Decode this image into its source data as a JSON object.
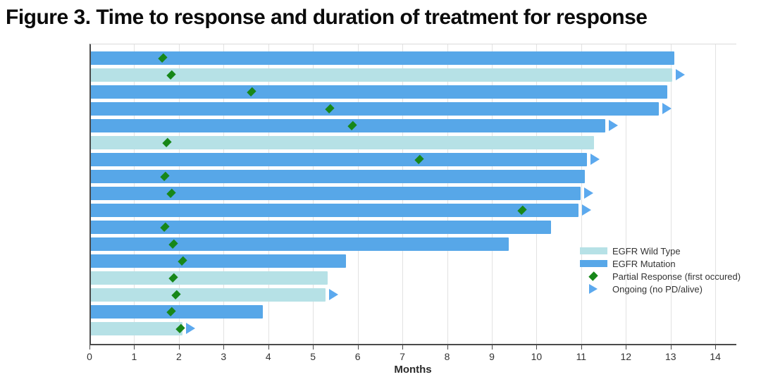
{
  "title": "Figure 3. Time to response and duration of treatment for response",
  "colors": {
    "wild_type": "#b6e1e6",
    "mutation": "#57a7e8",
    "response": "#178719",
    "ongoing": "#5ca9ee",
    "grid": "#e2e2e2",
    "axis": "#4a4a4a"
  },
  "icons": {
    "partial_response": "diamond-icon",
    "ongoing": "triangle-right-icon"
  },
  "chart_data": {
    "type": "bar",
    "subtype": "swimmer-plot",
    "orientation": "horizontal",
    "title": "Figure 3. Time to response and duration of treatment for response",
    "xlabel": "Months",
    "x_ticks": [
      0,
      1,
      2,
      3,
      4,
      5,
      6,
      7,
      8,
      9,
      10,
      11,
      12,
      13,
      14
    ],
    "xlim": [
      0,
      14.47
    ],
    "grid": "vertical",
    "legend_position": "inside-right",
    "legend_items": [
      {
        "label": "EGFR Wild Type",
        "swatch": "bar",
        "color_key": "wild_type"
      },
      {
        "label": "EGFR Mutation",
        "swatch": "bar",
        "color_key": "mutation"
      },
      {
        "label": "Partial Response (first occured)",
        "swatch": "diamond",
        "color_key": "response"
      },
      {
        "label": "Ongoing (no PD/alive)",
        "swatch": "triangle",
        "color_key": "ongoing"
      }
    ],
    "bars": [
      {
        "group": "mutation",
        "duration_months": 13.05,
        "partial_response_month": 1.6,
        "ongoing": false
      },
      {
        "group": "wild_type",
        "duration_months": 13.0,
        "partial_response_month": 1.8,
        "ongoing": true
      },
      {
        "group": "mutation",
        "duration_months": 12.9,
        "partial_response_month": 3.6,
        "ongoing": false
      },
      {
        "group": "mutation",
        "duration_months": 12.7,
        "partial_response_month": 5.35,
        "ongoing": true
      },
      {
        "group": "mutation",
        "duration_months": 11.5,
        "partial_response_month": 5.85,
        "ongoing": true
      },
      {
        "group": "wild_type",
        "duration_months": 11.25,
        "partial_response_month": 1.7,
        "ongoing": false
      },
      {
        "group": "mutation",
        "duration_months": 11.1,
        "partial_response_month": 7.35,
        "ongoing": true
      },
      {
        "group": "mutation",
        "duration_months": 11.05,
        "partial_response_month": 1.65,
        "ongoing": false
      },
      {
        "group": "mutation",
        "duration_months": 10.95,
        "partial_response_month": 1.8,
        "ongoing": true
      },
      {
        "group": "mutation",
        "duration_months": 10.9,
        "partial_response_month": 9.65,
        "ongoing": true
      },
      {
        "group": "mutation",
        "duration_months": 10.3,
        "partial_response_month": 1.65,
        "ongoing": false
      },
      {
        "group": "mutation",
        "duration_months": 9.35,
        "partial_response_month": 1.85,
        "ongoing": false
      },
      {
        "group": "mutation",
        "duration_months": 5.7,
        "partial_response_month": 2.05,
        "ongoing": false
      },
      {
        "group": "wild_type",
        "duration_months": 5.3,
        "partial_response_month": 1.85,
        "ongoing": false
      },
      {
        "group": "wild_type",
        "duration_months": 5.25,
        "partial_response_month": 1.9,
        "ongoing": true
      },
      {
        "group": "mutation",
        "duration_months": 3.85,
        "partial_response_month": 1.8,
        "ongoing": false
      },
      {
        "group": "wild_type",
        "duration_months": 2.05,
        "partial_response_month": 2.0,
        "ongoing": true
      }
    ]
  }
}
